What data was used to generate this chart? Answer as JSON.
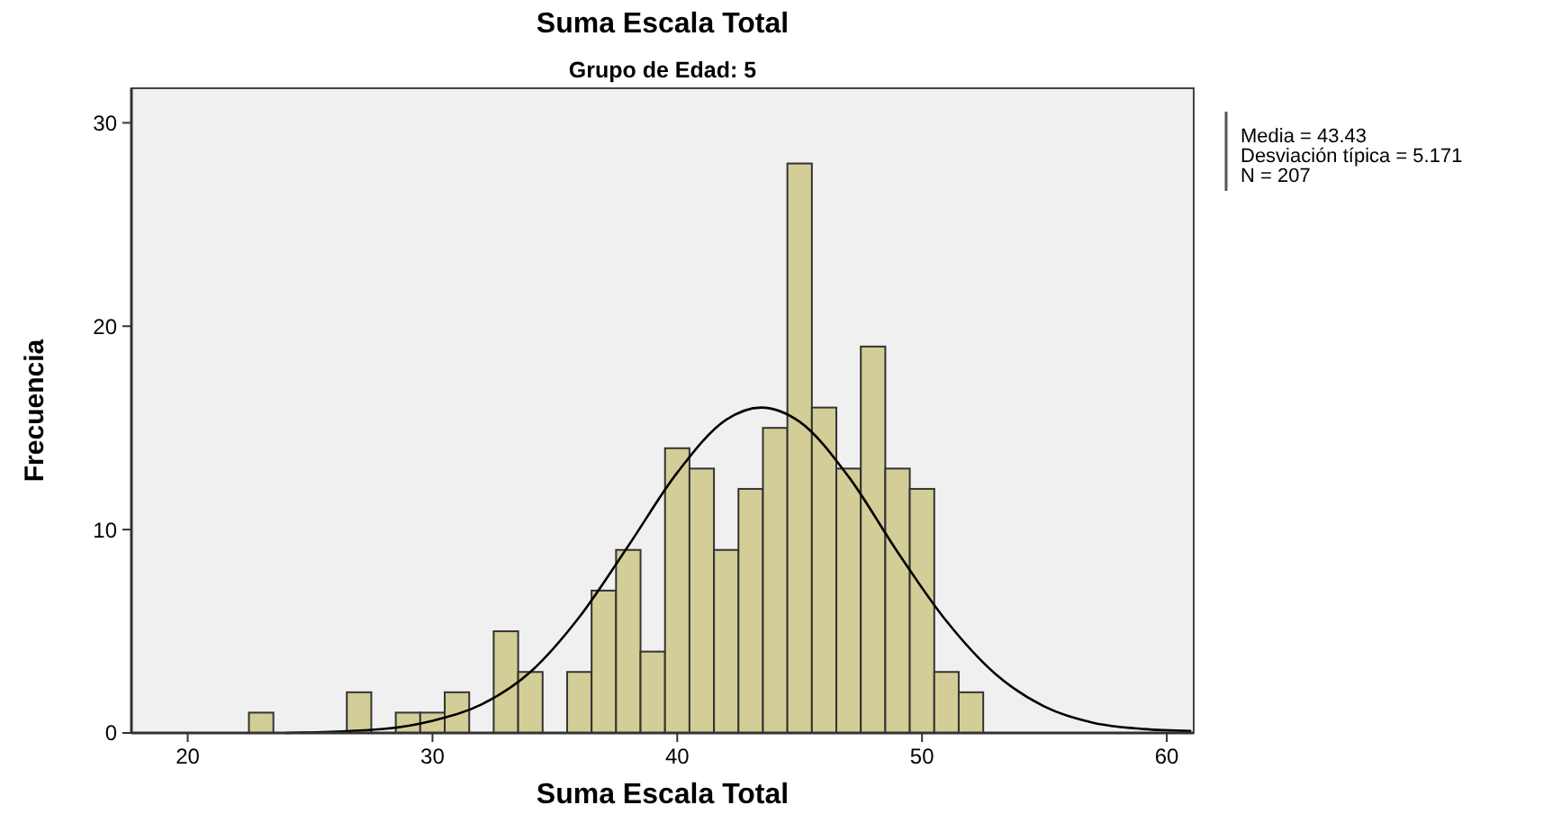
{
  "chart_data": {
    "type": "histogram",
    "title": "Suma Escala Total",
    "subtitle": "Grupo de Edad: 5",
    "xlabel": "Suma Escala Total",
    "ylabel": "Frecuencia",
    "bins": [
      22.5,
      23.5,
      24.5,
      25.5,
      26.5,
      27.5,
      28.5,
      29.5,
      30.5,
      31.5,
      32.5,
      33.5,
      34.5,
      35.5,
      36.5,
      37.5,
      38.5,
      39.5,
      40.5,
      41.5,
      42.5,
      43.5,
      44.5,
      45.5,
      46.5,
      47.5,
      48.5,
      49.5,
      50.5,
      51.5,
      52.5
    ],
    "values": [
      1,
      0,
      0,
      0,
      2,
      0,
      1,
      1,
      2,
      0,
      5,
      3,
      0,
      3,
      7,
      9,
      4,
      14,
      13,
      9,
      12,
      15,
      28,
      16,
      13,
      19,
      13,
      12,
      3,
      2
    ],
    "color": "#d3ce97",
    "series": [
      {
        "type": "line",
        "color": "#000000",
        "x": [
          24,
          28,
          30,
          32,
          34,
          36,
          38,
          40,
          42,
          43.43,
          45,
          47,
          49,
          51,
          53,
          55,
          57,
          59,
          61
        ],
        "values": [
          0,
          0.2,
          0.6,
          1.4,
          3,
          5.7,
          9.2,
          12.8,
          15.4,
          16,
          15.3,
          12.6,
          8.9,
          5.5,
          2.9,
          1.3,
          0.5,
          0.2,
          0.1
        ]
      }
    ],
    "xlim": [
      17.7,
      61.1
    ],
    "ylim": [
      0,
      31.7
    ],
    "xticks": [
      20,
      30,
      40,
      50,
      60
    ],
    "yticks": [
      0,
      10,
      20,
      30
    ],
    "grid": false,
    "annotations": [
      "Media = 43.43",
      "Desviación típica = 5.171",
      "N = 207"
    ]
  }
}
